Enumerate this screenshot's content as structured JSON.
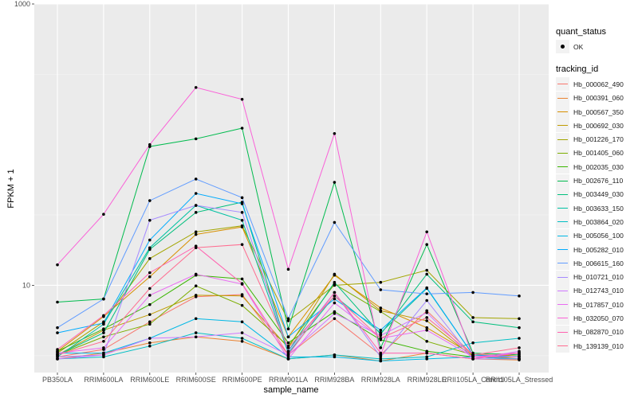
{
  "chart_data": {
    "type": "line",
    "xlabel": "sample_name",
    "ylabel": "FPKM + 1",
    "y_scale": "log10",
    "ylim": [
      2.4,
      1000
    ],
    "y_ticks": [
      {
        "value": 10,
        "label": "10"
      },
      {
        "value": 1000,
        "label": "1000"
      }
    ],
    "categories": [
      "PB350LA",
      "RRIM600LA",
      "RRIM600LE",
      "RRIM600SE",
      "RRIM600PE",
      "RRIM901LA",
      "RRIM928BA",
      "RRIM928LA",
      "RRIM928LE",
      "RRII105LA_Control",
      "RRII105LA_Stressed"
    ],
    "point_color": "#000000",
    "grid": true,
    "legend_position": "right",
    "legend_quant": {
      "title": "quant_status",
      "entries": [
        "OK"
      ]
    },
    "legend_tracking_title": "tracking_id",
    "series": [
      {
        "name": "Hb_000062_490",
        "color": "#F8766D",
        "values": [
          3.1,
          3.5,
          5.5,
          8.3,
          8.6,
          3.2,
          5.8,
          3.2,
          6.6,
          3.2,
          3.3
        ]
      },
      {
        "name": "Hb_000391_060",
        "color": "#EA8331",
        "values": [
          3.0,
          3.3,
          3.9,
          4.3,
          4.0,
          3.0,
          3.2,
          2.9,
          3.3,
          3.0,
          2.95
        ]
      },
      {
        "name": "Hb_000567_350",
        "color": "#D89000",
        "values": [
          3.4,
          6.0,
          11.5,
          23.0,
          26.0,
          4.3,
          11.8,
          6.9,
          5.0,
          3.2,
          3.1
        ]
      },
      {
        "name": "Hb_000692_030",
        "color": "#C09B00",
        "values": [
          3.2,
          4.8,
          6.2,
          8.5,
          8.4,
          3.6,
          12.0,
          6.6,
          5.6,
          3.1,
          3.2
        ]
      },
      {
        "name": "Hb_001226_170",
        "color": "#A3A500",
        "values": [
          3.3,
          5.5,
          15.5,
          24.0,
          26.5,
          5.6,
          10.0,
          10.5,
          12.8,
          5.9,
          5.8
        ]
      },
      {
        "name": "Hb_001405_060",
        "color": "#7CAE00",
        "values": [
          3.2,
          4.3,
          5.3,
          9.9,
          7.2,
          3.7,
          10.2,
          6.5,
          4.0,
          3.2,
          3.0
        ]
      },
      {
        "name": "Hb_002035_030",
        "color": "#39B600",
        "values": [
          3.4,
          4.9,
          7.3,
          11.8,
          11.1,
          3.9,
          6.5,
          4.1,
          3.4,
          3.1,
          3.0
        ]
      },
      {
        "name": "Hb_002676_110",
        "color": "#00BB4E",
        "values": [
          7.6,
          8.0,
          97.0,
          110.0,
          131.0,
          4.9,
          54.0,
          3.6,
          19.5,
          3.3,
          3.2
        ]
      },
      {
        "name": "Hb_003449_030",
        "color": "#00BF7D",
        "values": [
          3.2,
          4.6,
          18.0,
          33.0,
          39.0,
          3.4,
          10.5,
          4.5,
          12.0,
          5.5,
          5.0
        ]
      },
      {
        "name": "Hb_003633_150",
        "color": "#00C1A3",
        "values": [
          3.1,
          5.3,
          18.5,
          37.0,
          29.0,
          3.3,
          8.4,
          4.6,
          9.5,
          3.2,
          3.1
        ]
      },
      {
        "name": "Hb_003864_020",
        "color": "#00BFC4",
        "values": [
          3.0,
          3.1,
          3.7,
          4.6,
          4.2,
          3.0,
          3.2,
          3.0,
          3.1,
          3.9,
          4.2
        ]
      },
      {
        "name": "Hb_005056_100",
        "color": "#00B8E5",
        "values": [
          3.3,
          3.3,
          4.2,
          5.8,
          5.5,
          3.1,
          3.1,
          2.9,
          3.0,
          3.1,
          3.0
        ]
      },
      {
        "name": "Hb_005282_010",
        "color": "#00ABFD",
        "values": [
          4.6,
          5.4,
          21.0,
          45.0,
          38.0,
          4.3,
          8.0,
          4.8,
          9.6,
          3.2,
          3.1
        ]
      },
      {
        "name": "Hb_006615_160",
        "color": "#619CFF",
        "values": [
          5.0,
          8.0,
          40.0,
          57.0,
          42.0,
          5.8,
          28.0,
          9.3,
          8.7,
          8.9,
          8.4
        ]
      },
      {
        "name": "Hb_010721_010",
        "color": "#A58AFF",
        "values": [
          3.1,
          3.2,
          29.0,
          37.0,
          33.0,
          3.4,
          8.9,
          3.1,
          7.8,
          3.0,
          3.0
        ]
      },
      {
        "name": "Hb_012743_010",
        "color": "#CF78FF",
        "values": [
          3.0,
          3.2,
          4.2,
          4.3,
          4.6,
          3.2,
          6.3,
          4.4,
          6.4,
          3.0,
          3.4
        ]
      },
      {
        "name": "Hb_017857_010",
        "color": "#E96BF2",
        "values": [
          3.3,
          3.6,
          8.5,
          12.0,
          10.2,
          3.0,
          7.5,
          4.2,
          4.8,
          3.1,
          3.3
        ]
      },
      {
        "name": "Hb_032050_070",
        "color": "#FA62D8",
        "values": [
          14.0,
          32.0,
          100.0,
          255.0,
          210.0,
          13.0,
          120.0,
          3.2,
          24.0,
          3.1,
          3.1
        ]
      },
      {
        "name": "Hb_082870_010",
        "color": "#FF61AF",
        "values": [
          3.5,
          6.1,
          12.3,
          19.0,
          10.3,
          3.2,
          8.9,
          3.3,
          3.3,
          3.0,
          3.3
        ]
      },
      {
        "name": "Hb_139139_010",
        "color": "#FF6C90",
        "values": [
          3.2,
          4.0,
          9.5,
          18.5,
          19.5,
          3.6,
          8.4,
          4.2,
          5.9,
          3.2,
          3.6
        ]
      }
    ]
  }
}
